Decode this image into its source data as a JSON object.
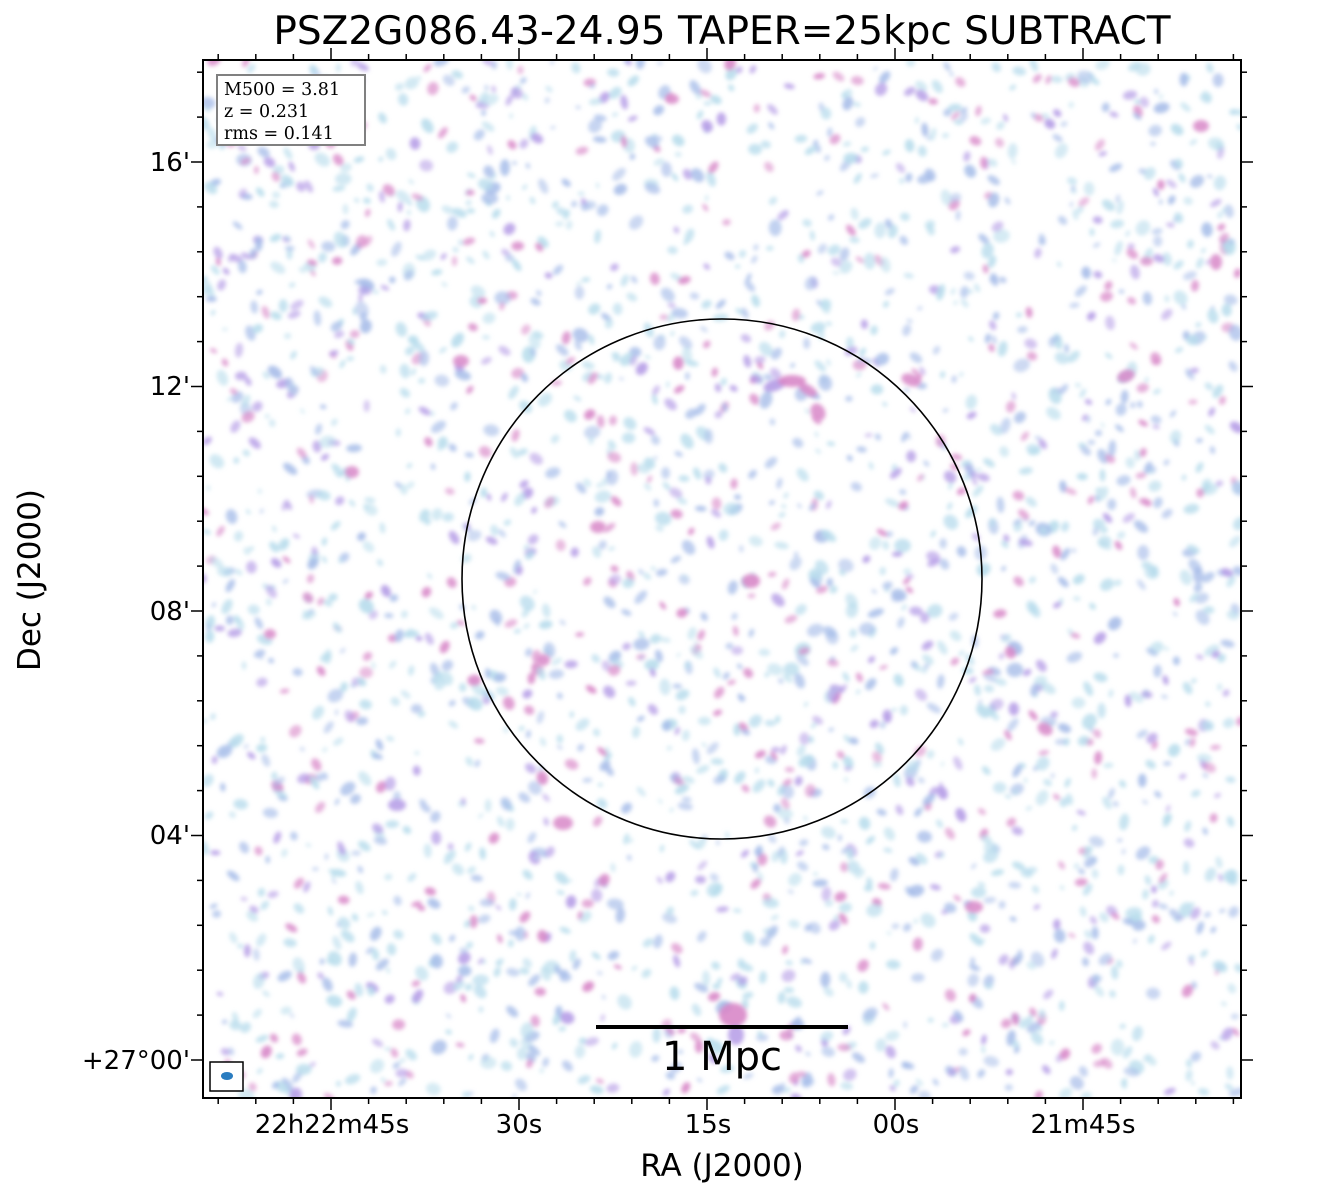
{
  "title": "PSZ2G086.43-24.95 TAPER=25kpc SUBTRACT",
  "axes": {
    "xlabel": "RA (J2000)",
    "ylabel": "Dec (J2000)",
    "xticks": [
      "22h22m45s",
      "30s",
      "15s",
      "00s",
      "21m45s"
    ],
    "yticks": [
      "16'",
      "12'",
      "08'",
      "04'",
      "+27°00'"
    ]
  },
  "info_box": {
    "line1": "M500 = 3.81",
    "line2": "z = 0.231",
    "line3": "rms = 0.141"
  },
  "scalebar": {
    "label": "1 Mpc"
  },
  "colors": {
    "faint": "#b7dcec",
    "low": "#a7bde9",
    "mid": "#b49be6",
    "peak": "#d887c8",
    "circle": "#000000",
    "beam": "#2a7cc0"
  }
}
